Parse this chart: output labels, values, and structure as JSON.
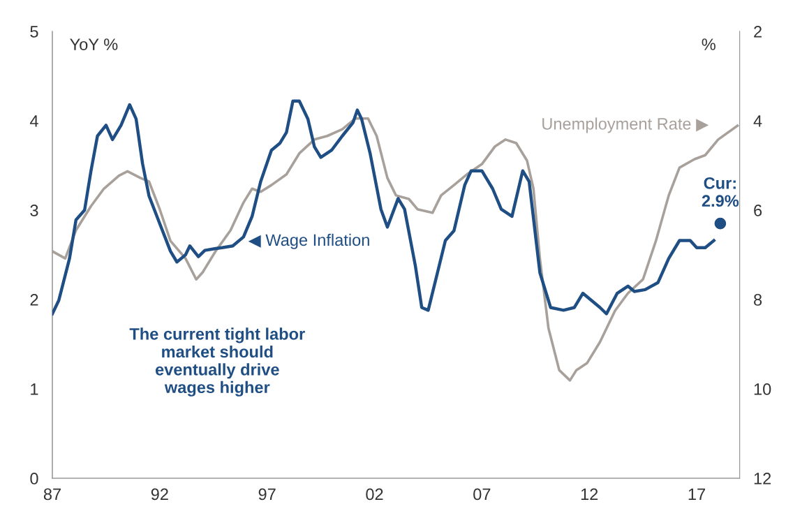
{
  "chart_data": {
    "type": "line",
    "ylabel": "YoY %",
    "y2label": "%",
    "annotations": [
      "The current tight labor\nmarket should\neventually drive\nwages higher",
      {
        "text": "Cur:\n2.9%",
        "x": 2018.1,
        "y": 2.85
      }
    ],
    "xlim": [
      1987,
      2019
    ],
    "xticks": [
      {
        "value": 1987,
        "label": "87"
      },
      {
        "value": 1992,
        "label": "92"
      },
      {
        "value": 1997,
        "label": "97"
      },
      {
        "value": 2002,
        "label": "02"
      },
      {
        "value": 2007,
        "label": "07"
      },
      {
        "value": 2012,
        "label": "12"
      },
      {
        "value": 2017,
        "label": "17"
      }
    ],
    "ylim": [
      0,
      5
    ],
    "yticks": [
      0,
      1,
      2,
      3,
      4,
      5
    ],
    "y2lim": [
      12,
      2
    ],
    "y2ticks": [
      2,
      4,
      6,
      8,
      10,
      12
    ],
    "grid": false,
    "legend": false,
    "marker": "none",
    "line_style": "solid",
    "series": [
      {
        "name": "◀ Wage Inflation",
        "color": "#1f4e84",
        "x": [
          1987.0,
          1987.3,
          1987.8,
          1988.1,
          1988.5,
          1988.8,
          1989.1,
          1989.5,
          1989.8,
          1990.2,
          1990.6,
          1990.9,
          1991.2,
          1991.5,
          1992.0,
          1992.5,
          1992.8,
          1993.2,
          1993.4,
          1993.8,
          1994.1,
          1994.6,
          1994.9,
          1995.4,
          1995.9,
          1996.3,
          1996.7,
          1997.2,
          1997.6,
          1997.9,
          1998.2,
          1998.5,
          1998.9,
          1999.2,
          1999.5,
          2000.0,
          2000.5,
          2001.0,
          2001.2,
          2001.4,
          2001.8,
          2002.3,
          2002.6,
          2003.1,
          2003.4,
          2003.9,
          2004.2,
          2004.5,
          2004.9,
          2005.3,
          2005.7,
          2006.2,
          2006.5,
          2007.0,
          2007.5,
          2007.9,
          2008.4,
          2008.9,
          2009.2,
          2009.7,
          2010.2,
          2010.8,
          2011.3,
          2011.7,
          2012.1,
          2012.5,
          2012.8,
          2013.3,
          2013.8,
          2014.1,
          2014.6,
          2015.2,
          2015.7,
          2016.2,
          2016.7,
          2017.0,
          2017.4,
          2017.8
        ],
        "values": [
          1.84,
          1.99,
          2.46,
          2.89,
          3.0,
          3.44,
          3.83,
          3.95,
          3.79,
          3.95,
          4.18,
          4.02,
          3.52,
          3.16,
          2.85,
          2.54,
          2.42,
          2.5,
          2.6,
          2.48,
          2.55,
          2.57,
          2.58,
          2.6,
          2.7,
          2.93,
          3.32,
          3.67,
          3.75,
          3.87,
          4.22,
          4.22,
          4.02,
          3.71,
          3.59,
          3.67,
          3.83,
          3.98,
          4.12,
          4.02,
          3.63,
          3.01,
          2.81,
          3.13,
          3.01,
          2.38,
          1.91,
          1.88,
          2.27,
          2.66,
          2.77,
          3.28,
          3.44,
          3.44,
          3.24,
          3.01,
          2.93,
          3.44,
          3.32,
          2.3,
          1.91,
          1.88,
          1.91,
          2.07,
          1.99,
          1.91,
          1.84,
          2.07,
          2.15,
          2.09,
          2.11,
          2.19,
          2.46,
          2.66,
          2.66,
          2.58,
          2.58,
          2.66
        ]
      },
      {
        "name": "Unemployment Rate ▶",
        "color": "#a8a09a",
        "axis": "y2",
        "x": [
          1987.0,
          1987.6,
          1988.1,
          1988.8,
          1989.4,
          1990.1,
          1990.5,
          1991.1,
          1991.5,
          1992.0,
          1992.5,
          1993.2,
          1993.7,
          1994.0,
          1994.6,
          1995.3,
          1995.9,
          1996.3,
          1996.7,
          1997.2,
          1997.9,
          1998.5,
          1999.2,
          1999.8,
          2000.5,
          2001.1,
          2001.7,
          2002.1,
          2002.6,
          2003.0,
          2003.6,
          2004.0,
          2004.7,
          2005.1,
          2005.7,
          2006.3,
          2007.0,
          2007.6,
          2008.1,
          2008.6,
          2009.1,
          2009.4,
          2009.7,
          2010.1,
          2010.6,
          2011.1,
          2011.4,
          2011.9,
          2012.5,
          2013.2,
          2013.8,
          2014.5,
          2015.1,
          2015.7,
          2016.2,
          2016.9,
          2017.4,
          2018.0,
          2018.9
        ],
        "values": [
          6.92,
          7.08,
          6.45,
          5.91,
          5.52,
          5.23,
          5.13,
          5.28,
          5.36,
          5.98,
          6.69,
          7.08,
          7.55,
          7.39,
          6.92,
          6.45,
          5.83,
          5.52,
          5.59,
          5.44,
          5.2,
          4.73,
          4.42,
          4.34,
          4.19,
          3.95,
          3.95,
          4.34,
          5.28,
          5.67,
          5.75,
          5.98,
          6.06,
          5.67,
          5.44,
          5.2,
          4.97,
          4.58,
          4.42,
          4.5,
          4.89,
          5.52,
          7.08,
          8.64,
          9.58,
          9.81,
          9.58,
          9.42,
          8.95,
          8.25,
          7.86,
          7.55,
          6.69,
          5.67,
          5.05,
          4.86,
          4.77,
          4.42,
          4.11
        ]
      }
    ]
  }
}
